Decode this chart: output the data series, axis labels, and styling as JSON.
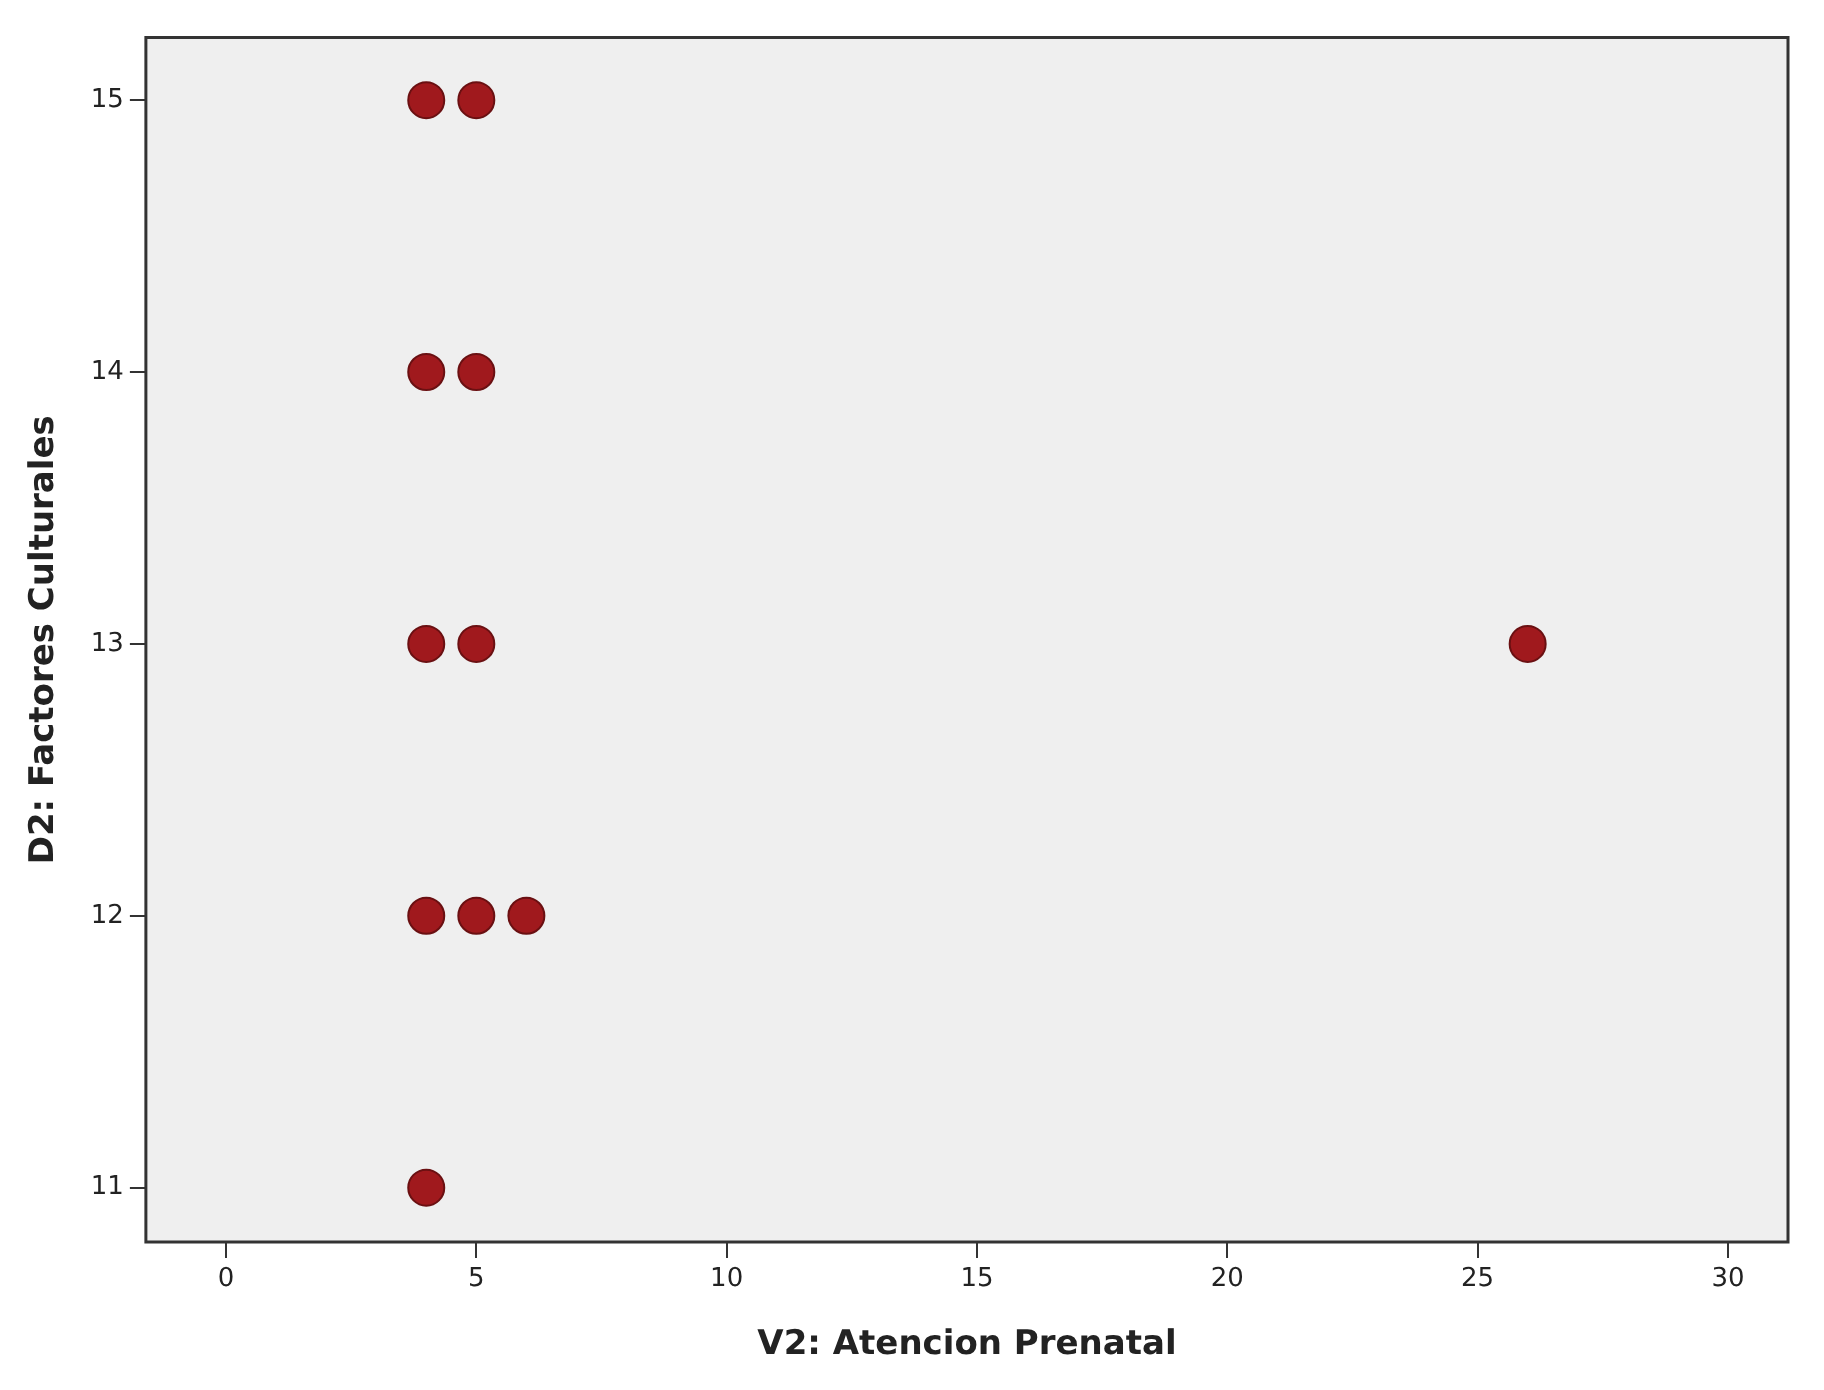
{
  "chart_data": {
    "type": "scatter",
    "xlabel": "V2: Atencion Prenatal",
    "ylabel": "D2: Factores Culturales",
    "series": [
      {
        "color": "#a0191d",
        "x": [
          4,
          5,
          4,
          5,
          4,
          5,
          26,
          4,
          5,
          6,
          4
        ],
        "values": [
          15,
          15,
          14,
          14,
          13,
          13,
          13,
          12,
          12,
          12,
          11
        ]
      }
    ],
    "xlim": [
      -1.6,
      31.2
    ],
    "xticks": [
      0,
      5,
      10,
      15,
      20,
      25,
      30
    ],
    "ylim": [
      10.8,
      15.23
    ],
    "yticks": [
      11,
      12,
      13,
      14,
      15
    ],
    "grid": false,
    "legend": false,
    "marker": "circle"
  }
}
